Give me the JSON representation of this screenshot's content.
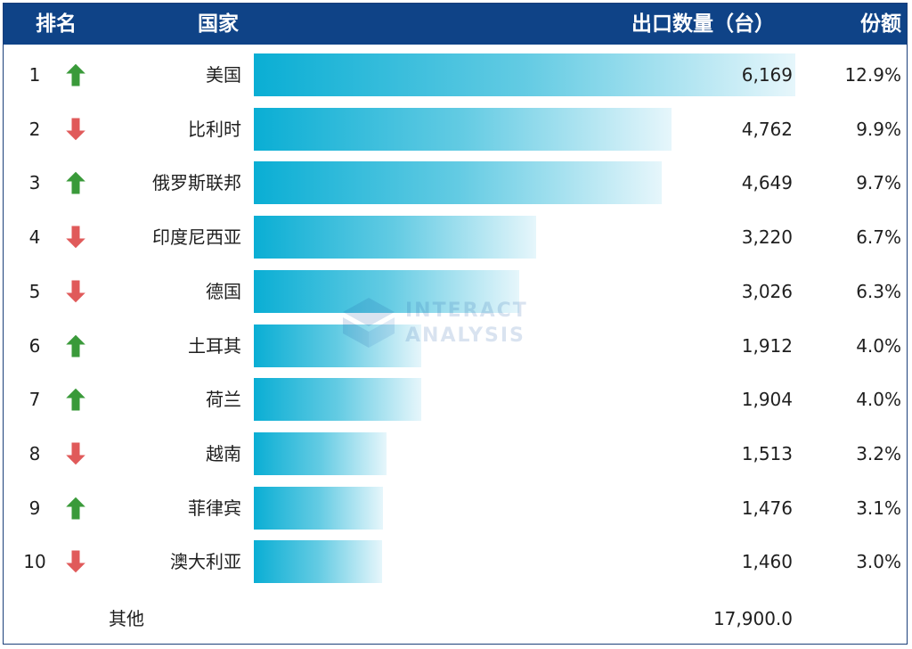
{
  "header": {
    "rank": "排名",
    "country": "国家",
    "export": "出口数量（台）",
    "share": "份额"
  },
  "colors": {
    "header_bg": "#0f4387",
    "bar_start": "#0aaed4",
    "bar_end": "#e6f6fb",
    "arrow_up": "#3a9a3a",
    "arrow_down": "#e05a5a"
  },
  "watermark": {
    "line1": "INTERACT",
    "line2": "ANALYSIS"
  },
  "chart_data": {
    "type": "bar",
    "orientation": "horizontal",
    "columns": [
      "排名",
      "国家",
      "出口数量（台）",
      "份额"
    ],
    "rows": [
      {
        "rank": "1",
        "trend": "up",
        "trend_icon": "up-arrow-icon",
        "country": "美国",
        "value": 6169,
        "value_label": "6,169",
        "share": "12.9%"
      },
      {
        "rank": "2",
        "trend": "down",
        "trend_icon": "down-arrow-icon",
        "country": "比利时",
        "value": 4762,
        "value_label": "4,762",
        "share": "9.9%"
      },
      {
        "rank": "3",
        "trend": "up",
        "trend_icon": "up-arrow-icon",
        "country": "俄罗斯联邦",
        "value": 4649,
        "value_label": "4,649",
        "share": "9.7%"
      },
      {
        "rank": "4",
        "trend": "down",
        "trend_icon": "down-arrow-icon",
        "country": "印度尼西亚",
        "value": 3220,
        "value_label": "3,220",
        "share": "6.7%"
      },
      {
        "rank": "5",
        "trend": "down",
        "trend_icon": "down-arrow-icon",
        "country": "德国",
        "value": 3026,
        "value_label": "3,026",
        "share": "6.3%"
      },
      {
        "rank": "6",
        "trend": "up",
        "trend_icon": "up-arrow-icon",
        "country": "土耳其",
        "value": 1912,
        "value_label": "1,912",
        "share": "4.0%"
      },
      {
        "rank": "7",
        "trend": "up",
        "trend_icon": "up-arrow-icon",
        "country": "荷兰",
        "value": 1904,
        "value_label": "1,904",
        "share": "4.0%"
      },
      {
        "rank": "8",
        "trend": "down",
        "trend_icon": "down-arrow-icon",
        "country": "越南",
        "value": 1513,
        "value_label": "1,513",
        "share": "3.2%"
      },
      {
        "rank": "9",
        "trend": "up",
        "trend_icon": "up-arrow-icon",
        "country": "菲律宾",
        "value": 1476,
        "value_label": "1,476",
        "share": "3.1%"
      },
      {
        "rank": "10",
        "trend": "down",
        "trend_icon": "down-arrow-icon",
        "country": "澳大利亚",
        "value": 1460,
        "value_label": "1,460",
        "share": "3.0%"
      }
    ],
    "others": {
      "label": "其他",
      "value": 17900.0,
      "value_label": "17,900.0"
    },
    "xlim": [
      0,
      6169
    ]
  }
}
